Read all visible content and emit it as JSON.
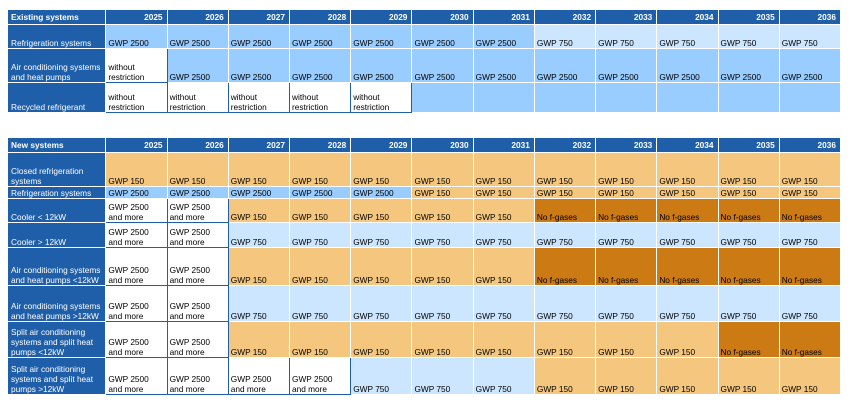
{
  "years": [
    "2025",
    "2026",
    "2027",
    "2028",
    "2029",
    "2030",
    "2031",
    "2032",
    "2033",
    "2034",
    "2035",
    "2036"
  ],
  "existing": {
    "title": "Existing systems",
    "rows": [
      {
        "label": "Refrigeration systems",
        "cells": [
          [
            "GWP 2500",
            "blue"
          ],
          [
            "GWP 2500",
            "blue"
          ],
          [
            "GWP 2500",
            "blue"
          ],
          [
            "GWP 2500",
            "blue"
          ],
          [
            "GWP 2500",
            "blue"
          ],
          [
            "GWP 2500",
            "blue"
          ],
          [
            "GWP 2500",
            "blue"
          ],
          [
            "GWP 750",
            "lblue"
          ],
          [
            "GWP 750",
            "lblue"
          ],
          [
            "GWP 750",
            "lblue"
          ],
          [
            "GWP 750",
            "lblue"
          ],
          [
            "GWP 750",
            "lblue"
          ]
        ],
        "h": 24
      },
      {
        "label": "Air conditioning systems and heat pumps",
        "cells": [
          [
            "without restriction",
            "white"
          ],
          [
            "GWP 2500",
            "blue"
          ],
          [
            "GWP 2500",
            "blue"
          ],
          [
            "GWP 2500",
            "blue"
          ],
          [
            "GWP 2500",
            "blue"
          ],
          [
            "GWP 2500",
            "blue"
          ],
          [
            "GWP 2500",
            "blue"
          ],
          [
            "GWP 2500",
            "blue"
          ],
          [
            "GWP 2500",
            "blue"
          ],
          [
            "GWP 2500",
            "blue"
          ],
          [
            "GWP 2500",
            "blue"
          ],
          [
            "GWP 2500",
            "blue"
          ]
        ],
        "h": 34
      },
      {
        "label": "Recycled refrigerant",
        "cells": [
          [
            "without restriction",
            "white"
          ],
          [
            "without restriction",
            "white"
          ],
          [
            "without restriction",
            "white"
          ],
          [
            "without restriction",
            "white"
          ],
          [
            "without restriction",
            "white"
          ],
          [
            "",
            "blue"
          ],
          [
            "",
            "blue"
          ],
          [
            "",
            "blue"
          ],
          [
            "",
            "blue"
          ],
          [
            "",
            "blue"
          ],
          [
            "",
            "blue"
          ],
          [
            "",
            "blue"
          ]
        ],
        "h": 30
      }
    ]
  },
  "new": {
    "title": "New systems",
    "rows": [
      {
        "label": "Closed refrigeration systems",
        "cells": [
          [
            "GWP 150",
            "orange"
          ],
          [
            "GWP 150",
            "orange"
          ],
          [
            "GWP 150",
            "orange"
          ],
          [
            "GWP 150",
            "orange"
          ],
          [
            "GWP 150",
            "orange"
          ],
          [
            "GWP 150",
            "orange"
          ],
          [
            "GWP 150",
            "orange"
          ],
          [
            "GWP 150",
            "orange"
          ],
          [
            "GWP 150",
            "orange"
          ],
          [
            "GWP 150",
            "orange"
          ],
          [
            "GWP 150",
            "orange"
          ],
          [
            "GWP 150",
            "orange"
          ]
        ],
        "h": 34
      },
      {
        "label": "Refrigeration systems",
        "cells": [
          [
            "GWP 2500",
            "blue"
          ],
          [
            "GWP 2500",
            "blue"
          ],
          [
            "GWP 2500",
            "blue"
          ],
          [
            "GWP 2500",
            "blue"
          ],
          [
            "GWP 2500",
            "blue"
          ],
          [
            "GWP 150",
            "orange"
          ],
          [
            "GWP 150",
            "orange"
          ],
          [
            "GWP 150",
            "orange"
          ],
          [
            "GWP 150",
            "orange"
          ],
          [
            "GWP 150",
            "orange"
          ],
          [
            "GWP 150",
            "orange"
          ],
          [
            "GWP 150",
            "orange"
          ]
        ],
        "h": 12
      },
      {
        "label": "Cooler < 12kW",
        "cells": [
          [
            "GWP 2500 and more",
            "white"
          ],
          [
            "GWP 2500 and more",
            "white"
          ],
          [
            "GWP 150",
            "orange"
          ],
          [
            "GWP 150",
            "orange"
          ],
          [
            "GWP 150",
            "orange"
          ],
          [
            "GWP 150",
            "orange"
          ],
          [
            "GWP 150",
            "orange"
          ],
          [
            "No f-gases",
            "dorange"
          ],
          [
            "No f-gases",
            "dorange"
          ],
          [
            "No f-gases",
            "dorange"
          ],
          [
            "No f-gases",
            "dorange"
          ],
          [
            "No f-gases",
            "dorange"
          ]
        ],
        "h": 24
      },
      {
        "label": "Cooler > 12kW",
        "cells": [
          [
            "GWP 2500 and more",
            "white"
          ],
          [
            "GWP 2500 and more",
            "white"
          ],
          [
            "GWP 750",
            "lblue"
          ],
          [
            "GWP 750",
            "lblue"
          ],
          [
            "GWP 750",
            "lblue"
          ],
          [
            "GWP 750",
            "lblue"
          ],
          [
            "GWP 750",
            "lblue"
          ],
          [
            "GWP 750",
            "lblue"
          ],
          [
            "GWP 750",
            "lblue"
          ],
          [
            "GWP 750",
            "lblue"
          ],
          [
            "GWP 750",
            "lblue"
          ],
          [
            "GWP 750",
            "lblue"
          ]
        ],
        "h": 25
      },
      {
        "label": "Air conditioning systems and heat pumps <12kW",
        "cells": [
          [
            "GWP 2500 and more",
            "white"
          ],
          [
            "GWP 2500 and more",
            "white"
          ],
          [
            "GWP 150",
            "orange"
          ],
          [
            "GWP 150",
            "orange"
          ],
          [
            "GWP 150",
            "orange"
          ],
          [
            "GWP 150",
            "orange"
          ],
          [
            "GWP 150",
            "orange"
          ],
          [
            "No f-gases",
            "dorange"
          ],
          [
            "No f-gases",
            "dorange"
          ],
          [
            "No f-gases",
            "dorange"
          ],
          [
            "No f-gases",
            "dorange"
          ],
          [
            "No f-gases",
            "dorange"
          ]
        ],
        "h": 38
      },
      {
        "label": "Air conditioning systems and heat pumps >12kW",
        "cells": [
          [
            "GWP 2500 and more",
            "white"
          ],
          [
            "GWP 2500 and more",
            "white"
          ],
          [
            "GWP 750",
            "lblue"
          ],
          [
            "GWP 750",
            "lblue"
          ],
          [
            "GWP 750",
            "lblue"
          ],
          [
            "GWP 750",
            "lblue"
          ],
          [
            "GWP 750",
            "lblue"
          ],
          [
            "GWP 750",
            "lblue"
          ],
          [
            "GWP 750",
            "lblue"
          ],
          [
            "GWP 750",
            "lblue"
          ],
          [
            "GWP 750",
            "lblue"
          ],
          [
            "GWP 750",
            "lblue"
          ]
        ],
        "h": 36
      },
      {
        "label": "Split air conditioning systems and split heat pumps <12kW",
        "cells": [
          [
            "GWP 2500 and more",
            "white"
          ],
          [
            "GWP 2500 and more",
            "white"
          ],
          [
            "GWP 150",
            "orange"
          ],
          [
            "GWP 150",
            "orange"
          ],
          [
            "GWP 150",
            "orange"
          ],
          [
            "GWP 150",
            "orange"
          ],
          [
            "GWP 150",
            "orange"
          ],
          [
            "GWP 150",
            "orange"
          ],
          [
            "GWP 150",
            "orange"
          ],
          [
            "GWP 150",
            "orange"
          ],
          [
            "No f-gases",
            "dorange"
          ],
          [
            "No f-gases",
            "dorange"
          ]
        ],
        "h": 36
      },
      {
        "label": "Split air conditioning systems and split heat pumps >12kW",
        "cells": [
          [
            "GWP 2500 and more",
            "white"
          ],
          [
            "GWP 2500 and more",
            "white"
          ],
          [
            "GWP 2500 and more",
            "white"
          ],
          [
            "GWP 2500 and more",
            "white"
          ],
          [
            "GWP 750",
            "lblue"
          ],
          [
            "GWP 750",
            "lblue"
          ],
          [
            "GWP 750",
            "lblue"
          ],
          [
            "GWP 150",
            "orange"
          ],
          [
            "GWP 150",
            "orange"
          ],
          [
            "GWP 150",
            "orange"
          ],
          [
            "GWP 150",
            "orange"
          ],
          [
            "GWP 150",
            "orange"
          ]
        ],
        "h": 37
      }
    ]
  },
  "colors": {
    "header_blue": "#1f5ea8",
    "blue": "#99ccff",
    "light_blue": "#cce6ff",
    "orange": "#f5c77e",
    "dark_orange": "#cc7a14"
  }
}
